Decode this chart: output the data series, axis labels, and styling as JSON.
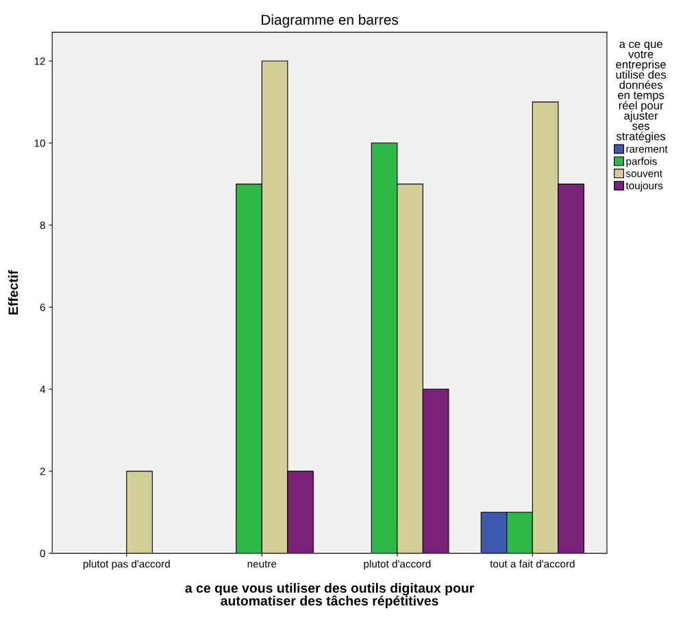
{
  "chart_data": {
    "type": "bar",
    "title": "Diagramme en barres",
    "xlabel": "a ce que vous utiliser des outils digitaux pour\nautomatiser des tâches répétitives",
    "ylabel": "Effectif",
    "legend_title": "a ce que\nvotre\nentreprise\nutilise des\ndonnées\nen temps\nréel pour\najuster\nses\nstratégies",
    "categories": [
      "plutot pas d'accord",
      "neutre",
      "plutot d'accord",
      "tout a fait d'accord"
    ],
    "series": [
      {
        "name": "rarement",
        "color": "#3e58ac",
        "values": [
          null,
          null,
          null,
          1
        ]
      },
      {
        "name": "parfois",
        "color": "#2eb848",
        "values": [
          null,
          9,
          10,
          1
        ]
      },
      {
        "name": "souvent",
        "color": "#d3ce97",
        "values": [
          2,
          12,
          9,
          11
        ]
      },
      {
        "name": "toujours",
        "color": "#7b2179",
        "values": [
          null,
          2,
          4,
          9
        ]
      }
    ],
    "ylim": [
      0,
      12.7
    ],
    "yticks": [
      0,
      2,
      4,
      6,
      8,
      10,
      12
    ],
    "grid": false,
    "legend": "right"
  }
}
